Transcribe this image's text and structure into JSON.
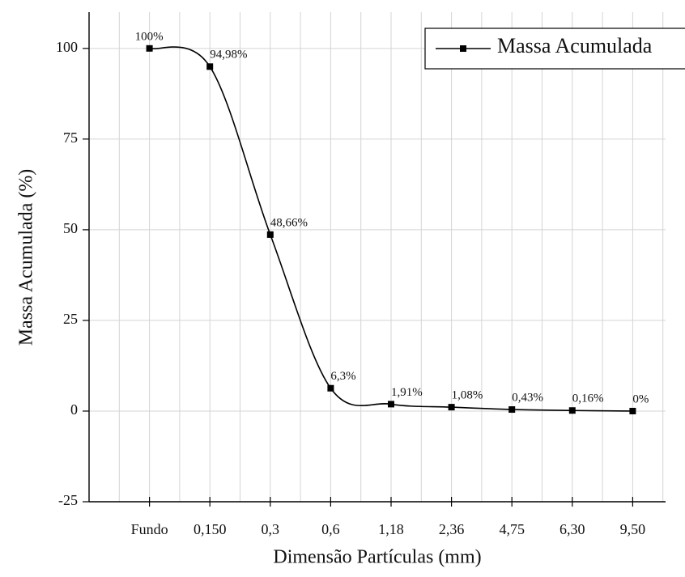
{
  "chart_data": {
    "type": "line",
    "x_label": "Dimensão Partículas (mm)",
    "y_label": "Massa Acumulada (%)",
    "categories": [
      "Fundo",
      "0,150",
      "0,3",
      "0,6",
      "1,18",
      "2,36",
      "4,75",
      "6,30",
      "9,50"
    ],
    "series": [
      {
        "name": "Massa Acumulada",
        "color": "#000000",
        "values": [
          100,
          94.98,
          48.66,
          6.3,
          1.91,
          1.08,
          0.43,
          0.16,
          0
        ],
        "value_labels": [
          "100%",
          "94,98%",
          "48,66%",
          "6,3%",
          "1,91%",
          "1,08%",
          "0,43%",
          "0,16%",
          "0%"
        ]
      }
    ],
    "ylim": [
      -25,
      110
    ],
    "yticks": [
      -25,
      0,
      25,
      50,
      75,
      100
    ],
    "grid": true,
    "smooth": true,
    "legend": "top-right"
  }
}
